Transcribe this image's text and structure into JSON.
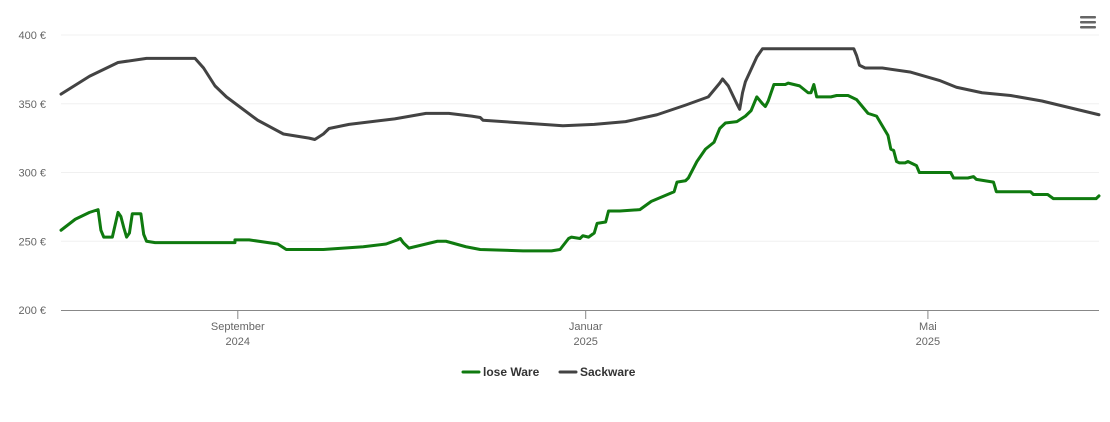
{
  "chart_data": {
    "type": "line",
    "title": "",
    "xlabel": "",
    "ylabel": "",
    "x_range": [
      "2024-07-01",
      "2025-06-30"
    ],
    "ylim": [
      200,
      400
    ],
    "y_ticks": [
      {
        "value": 200,
        "label": "200 €"
      },
      {
        "value": 250,
        "label": "250 €"
      },
      {
        "value": 300,
        "label": "300 €"
      },
      {
        "value": 350,
        "label": "350 €"
      },
      {
        "value": 400,
        "label": "400 €"
      }
    ],
    "x_ticks": [
      {
        "date": "2024-09-01",
        "month": "September",
        "year": "2024"
      },
      {
        "date": "2025-01-01",
        "month": "Januar",
        "year": "2025"
      },
      {
        "date": "2025-05-01",
        "month": "Mai",
        "year": "2025"
      }
    ],
    "grid": "horizontal",
    "legend_position": "bottom-center",
    "series": [
      {
        "name": "lose Ware",
        "color": "#0f7a0f",
        "points": [
          [
            "2024-07-01",
            258
          ],
          [
            "2024-07-06",
            266
          ],
          [
            "2024-07-11",
            271
          ],
          [
            "2024-07-14",
            273
          ],
          [
            "2024-07-15",
            258
          ],
          [
            "2024-07-16",
            253
          ],
          [
            "2024-07-19",
            253
          ],
          [
            "2024-07-20",
            262
          ],
          [
            "2024-07-21",
            271
          ],
          [
            "2024-07-22",
            268
          ],
          [
            "2024-07-23",
            260
          ],
          [
            "2024-07-24",
            253
          ],
          [
            "2024-07-25",
            256
          ],
          [
            "2024-07-26",
            270
          ],
          [
            "2024-07-29",
            270
          ],
          [
            "2024-07-30",
            255
          ],
          [
            "2024-07-31",
            250
          ],
          [
            "2024-08-03",
            249
          ],
          [
            "2024-08-31",
            249
          ],
          [
            "2024-08-31",
            251
          ],
          [
            "2024-09-05",
            251
          ],
          [
            "2024-09-15",
            248
          ],
          [
            "2024-09-18",
            244
          ],
          [
            "2024-10-01",
            244
          ],
          [
            "2024-10-15",
            246
          ],
          [
            "2024-10-23",
            248
          ],
          [
            "2024-10-27",
            251
          ],
          [
            "2024-10-28",
            252
          ],
          [
            "2024-10-29",
            249
          ],
          [
            "2024-10-31",
            245
          ],
          [
            "2024-11-04",
            247
          ],
          [
            "2024-11-10",
            250
          ],
          [
            "2024-11-13",
            250
          ],
          [
            "2024-11-20",
            246
          ],
          [
            "2024-11-25",
            244
          ],
          [
            "2024-12-10",
            243
          ],
          [
            "2024-12-20",
            243
          ],
          [
            "2024-12-23",
            244
          ],
          [
            "2024-12-26",
            252
          ],
          [
            "2024-12-27",
            253
          ],
          [
            "2024-12-30",
            252
          ],
          [
            "2024-12-31",
            254
          ],
          [
            "2025-01-02",
            253
          ],
          [
            "2025-01-04",
            256
          ],
          [
            "2025-01-05",
            263
          ],
          [
            "2025-01-08",
            264
          ],
          [
            "2025-01-09",
            272
          ],
          [
            "2025-01-13",
            272
          ],
          [
            "2025-01-20",
            273
          ],
          [
            "2025-01-24",
            279
          ],
          [
            "2025-02-01",
            286
          ],
          [
            "2025-02-02",
            293
          ],
          [
            "2025-02-05",
            294
          ],
          [
            "2025-02-06",
            296
          ],
          [
            "2025-02-09",
            308
          ],
          [
            "2025-02-12",
            317
          ],
          [
            "2025-02-15",
            322
          ],
          [
            "2025-02-17",
            332
          ],
          [
            "2025-02-19",
            336
          ],
          [
            "2025-02-23",
            337
          ],
          [
            "2025-02-26",
            341
          ],
          [
            "2025-02-28",
            345
          ],
          [
            "2025-03-02",
            355
          ],
          [
            "2025-03-04",
            350
          ],
          [
            "2025-03-05",
            348
          ],
          [
            "2025-03-06",
            352
          ],
          [
            "2025-03-08",
            364
          ],
          [
            "2025-03-12",
            364
          ],
          [
            "2025-03-13",
            365
          ],
          [
            "2025-03-17",
            363
          ],
          [
            "2025-03-20",
            358
          ],
          [
            "2025-03-21",
            358
          ],
          [
            "2025-03-22",
            364
          ],
          [
            "2025-03-23",
            355
          ],
          [
            "2025-03-28",
            355
          ],
          [
            "2025-03-30",
            356
          ],
          [
            "2025-04-03",
            356
          ],
          [
            "2025-04-06",
            353
          ],
          [
            "2025-04-10",
            343
          ],
          [
            "2025-04-13",
            341
          ],
          [
            "2025-04-17",
            327
          ],
          [
            "2025-04-18",
            317
          ],
          [
            "2025-04-19",
            316
          ],
          [
            "2025-04-20",
            308
          ],
          [
            "2025-04-21",
            307
          ],
          [
            "2025-04-23",
            307
          ],
          [
            "2025-04-24",
            308
          ],
          [
            "2025-04-27",
            305
          ],
          [
            "2025-04-28",
            300
          ],
          [
            "2025-05-09",
            300
          ],
          [
            "2025-05-10",
            296
          ],
          [
            "2025-05-15",
            296
          ],
          [
            "2025-05-17",
            297
          ],
          [
            "2025-05-18",
            295
          ],
          [
            "2025-05-24",
            293
          ],
          [
            "2025-05-25",
            286
          ],
          [
            "2025-06-06",
            286
          ],
          [
            "2025-06-07",
            284
          ],
          [
            "2025-06-12",
            284
          ],
          [
            "2025-06-14",
            281
          ],
          [
            "2025-06-29",
            281
          ],
          [
            "2025-06-30",
            283
          ]
        ]
      },
      {
        "name": "Sackware",
        "color": "#434343",
        "points": [
          [
            "2024-07-01",
            357
          ],
          [
            "2024-07-11",
            370
          ],
          [
            "2024-07-21",
            380
          ],
          [
            "2024-07-31",
            383
          ],
          [
            "2024-08-15",
            383
          ],
          [
            "2024-08-17",
            383
          ],
          [
            "2024-08-20",
            376
          ],
          [
            "2024-08-24",
            363
          ],
          [
            "2024-08-28",
            355
          ],
          [
            "2024-09-08",
            338
          ],
          [
            "2024-09-17",
            328
          ],
          [
            "2024-09-26",
            325
          ],
          [
            "2024-09-28",
            324
          ],
          [
            "2024-10-01",
            328
          ],
          [
            "2024-10-03",
            332
          ],
          [
            "2024-10-10",
            335
          ],
          [
            "2024-10-26",
            339
          ],
          [
            "2024-11-06",
            343
          ],
          [
            "2024-11-14",
            343
          ],
          [
            "2024-11-22",
            341
          ],
          [
            "2024-11-25",
            340
          ],
          [
            "2024-11-26",
            338
          ],
          [
            "2024-12-10",
            336
          ],
          [
            "2024-12-24",
            334
          ],
          [
            "2025-01-04",
            335
          ],
          [
            "2025-01-15",
            337
          ],
          [
            "2025-01-26",
            342
          ],
          [
            "2025-02-05",
            349
          ],
          [
            "2025-02-13",
            355
          ],
          [
            "2025-02-17",
            365
          ],
          [
            "2025-02-18",
            368
          ],
          [
            "2025-02-20",
            363
          ],
          [
            "2025-02-23",
            350
          ],
          [
            "2025-02-24",
            346
          ],
          [
            "2025-02-25",
            358
          ],
          [
            "2025-02-26",
            366
          ],
          [
            "2025-03-02",
            384
          ],
          [
            "2025-03-04",
            390
          ],
          [
            "2025-03-20",
            390
          ],
          [
            "2025-04-05",
            390
          ],
          [
            "2025-04-06",
            385
          ],
          [
            "2025-04-07",
            378
          ],
          [
            "2025-04-09",
            376
          ],
          [
            "2025-04-15",
            376
          ],
          [
            "2025-04-25",
            373
          ],
          [
            "2025-05-05",
            367
          ],
          [
            "2025-05-11",
            362
          ],
          [
            "2025-05-20",
            358
          ],
          [
            "2025-05-30",
            356
          ],
          [
            "2025-06-10",
            352
          ],
          [
            "2025-06-20",
            347
          ],
          [
            "2025-06-30",
            342
          ]
        ]
      }
    ]
  },
  "menu": {
    "icon": "hamburger-menu-icon"
  }
}
